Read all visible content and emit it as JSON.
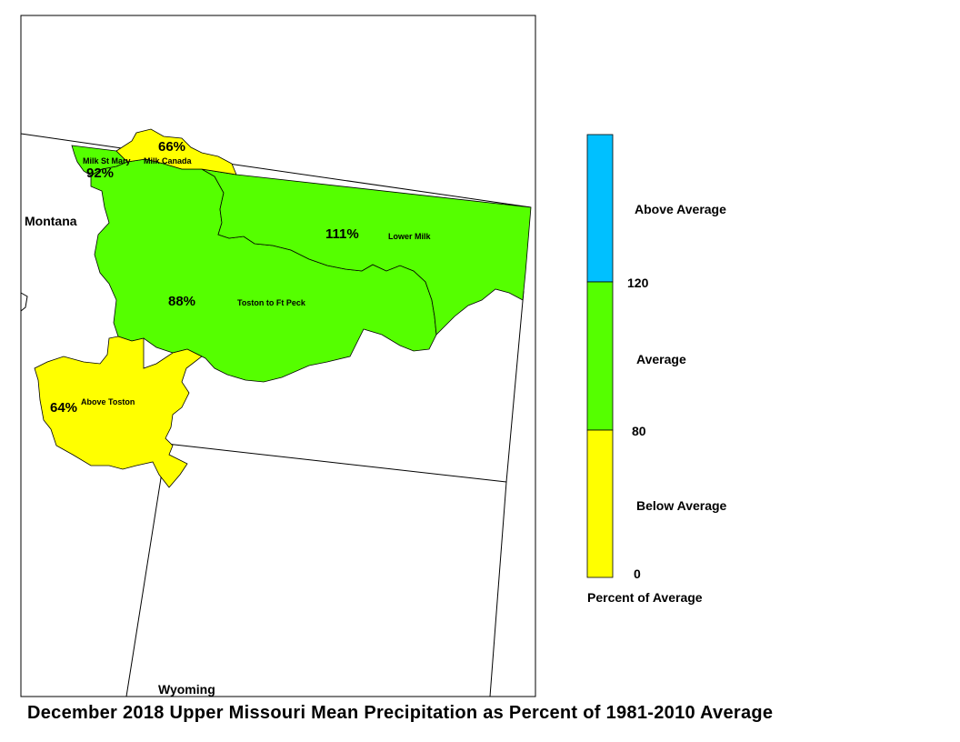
{
  "title": "December 2018 Upper Missouri Mean Precipitation as Percent of 1981-2010 Average",
  "states": [
    "Montana",
    "Wyoming"
  ],
  "colors": {
    "above": "#00c0ff",
    "average": "#55ff00",
    "below": "#ffff00",
    "outline": "#000000"
  },
  "regions": [
    {
      "name": "Milk Canada",
      "percent": "66%",
      "category": "below"
    },
    {
      "name": "Milk St Mary",
      "percent": "92%",
      "category": "average"
    },
    {
      "name": "Lower Milk",
      "percent": "111%",
      "category": "average"
    },
    {
      "name": "Toston to Ft Peck",
      "percent": "88%",
      "category": "average"
    },
    {
      "name": "Above Toston",
      "percent": "64%",
      "category": "below"
    }
  ],
  "legend": {
    "title": "Percent of Average",
    "classes": [
      {
        "label": "Above Average",
        "color": "#00c0ff"
      },
      {
        "label": "Average",
        "color": "#55ff00"
      },
      {
        "label": "Below Average",
        "color": "#ffff00"
      }
    ],
    "ticks": [
      "120",
      "80",
      "0"
    ]
  }
}
